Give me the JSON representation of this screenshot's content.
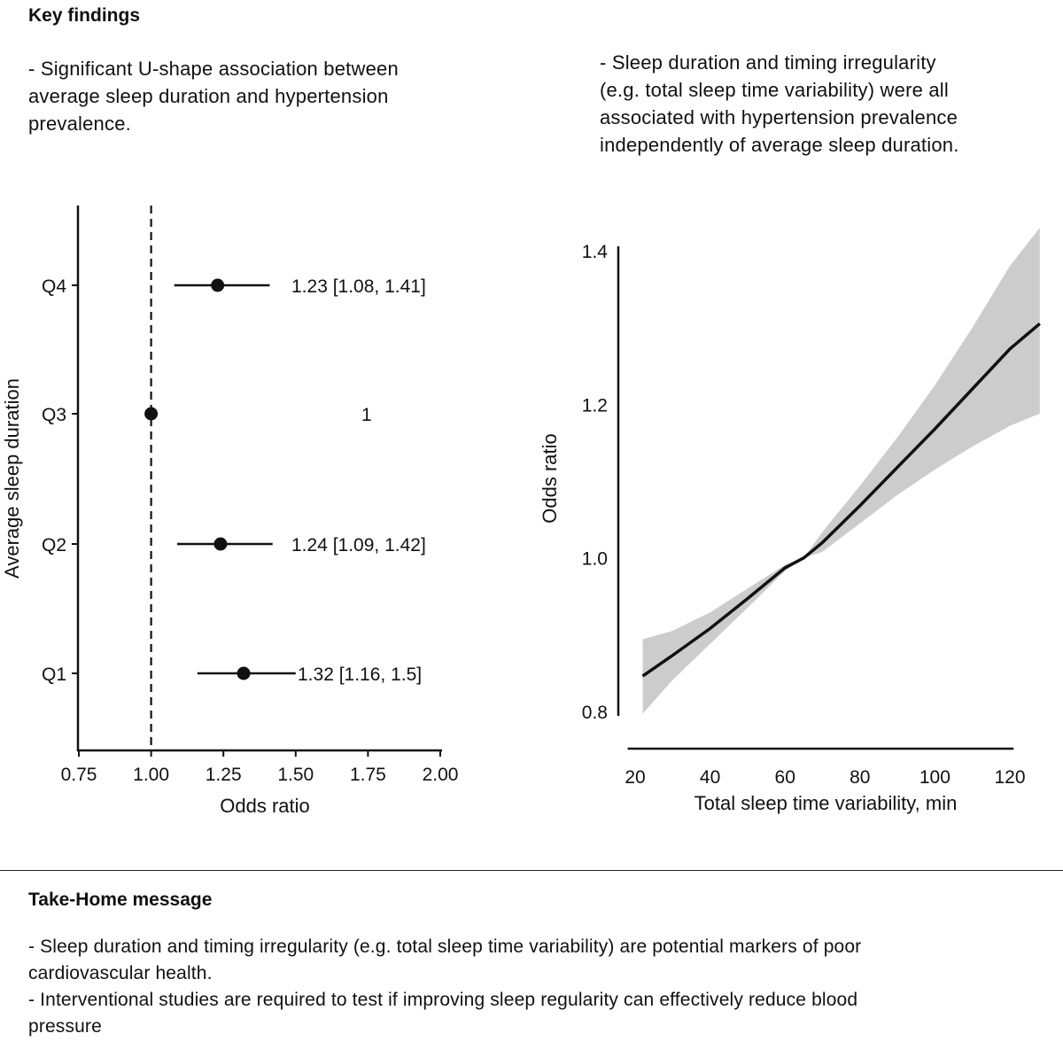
{
  "key_findings": {
    "title": "Key findings",
    "left_text": "- Significant U-shape association between\naverage sleep duration and hypertension\nprevalence.",
    "right_text": "- Sleep duration and timing irregularity\n(e.g. total sleep time variability) were all\nassociated with hypertension prevalence\nindependently of average sleep duration."
  },
  "take_home": {
    "title": "Take-Home message",
    "lines": [
      "- Sleep duration and timing irregularity (e.g. total sleep time variability) are potential markers of poor",
      "cardiovascular health.",
      "- Interventional studies are required to test if improving sleep regularity can effectively reduce blood",
      "pressure"
    ]
  },
  "chart_data": [
    {
      "type": "scatter",
      "subtype": "forest-plot",
      "categories": [
        "Q4",
        "Q3",
        "Q2",
        "Q1"
      ],
      "values": [
        1.23,
        1.0,
        1.24,
        1.32
      ],
      "ci_low": [
        1.08,
        null,
        1.09,
        1.16
      ],
      "ci_high": [
        1.41,
        null,
        1.42,
        1.5
      ],
      "labels": [
        "1.23 [1.08, 1.41]",
        "1",
        "1.24 [1.09, 1.42]",
        "1.32 [1.16, 1.5]"
      ],
      "reference_line": 1.0,
      "xlabel": "Odds ratio",
      "ylabel": "Average sleep duration",
      "xticks": [
        "0.75",
        "1.00",
        "1.25",
        "1.50",
        "1.75",
        "2.00"
      ],
      "xlim": [
        0.75,
        2.0
      ],
      "grid": false
    },
    {
      "type": "area",
      "subtype": "line-with-confidence-band",
      "x": [
        22,
        30,
        40,
        50,
        60,
        65,
        70,
        80,
        90,
        100,
        110,
        120,
        128
      ],
      "y": [
        0.846,
        0.873,
        0.908,
        0.947,
        0.987,
        1.0,
        1.02,
        1.068,
        1.118,
        1.168,
        1.22,
        1.272,
        1.305
      ],
      "lower": [
        0.797,
        0.841,
        0.888,
        0.935,
        0.983,
        1.0,
        1.008,
        1.045,
        1.082,
        1.115,
        1.145,
        1.172,
        1.188
      ],
      "upper": [
        0.894,
        0.905,
        0.929,
        0.96,
        0.991,
        1.0,
        1.034,
        1.094,
        1.157,
        1.225,
        1.3,
        1.38,
        1.43
      ],
      "xlabel": "Total sleep time variability, min",
      "ylabel": "Odds ratio",
      "xticks": [
        "20",
        "40",
        "60",
        "80",
        "100",
        "120"
      ],
      "yticks": [
        "0.8",
        "1.0",
        "1.2",
        "1.4"
      ],
      "grid": false
    }
  ]
}
